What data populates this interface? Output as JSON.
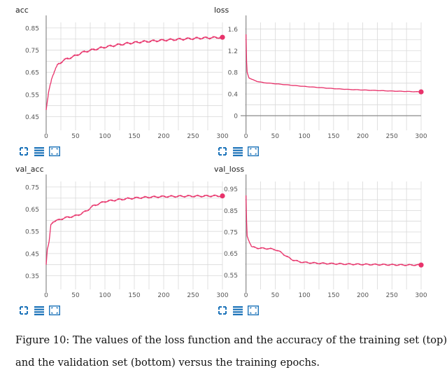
{
  "colors": {
    "series": "#e8336b",
    "grid": "#d9d9d9",
    "axis": "#8a8a8a",
    "ticklabel": "#555555",
    "icon": "#1c73b9"
  },
  "toolbar_icons": [
    "expand-icon",
    "list-icon",
    "fit-domain-icon"
  ],
  "caption": {
    "line1": "Figure 10: The values of the loss function and the accuracy of the training set (top)",
    "line2": "and the validation set (bottom) versus the training epochs."
  },
  "chart_data": [
    {
      "id": "acc",
      "type": "line",
      "title": "acc",
      "x_ticks": [
        "0",
        "50",
        "100",
        "150",
        "200",
        "250",
        "300"
      ],
      "y_ticks": [
        "0.45",
        "0.55",
        "0.65",
        "0.75",
        "0.85"
      ],
      "xlim": [
        0,
        300
      ],
      "ylim": [
        0.42,
        0.875
      ],
      "points": [
        [
          0,
          0.48
        ],
        [
          2,
          0.52
        ],
        [
          5,
          0.57
        ],
        [
          10,
          0.63
        ],
        [
          15,
          0.66
        ],
        [
          20,
          0.685
        ],
        [
          30,
          0.705
        ],
        [
          40,
          0.715
        ],
        [
          50,
          0.725
        ],
        [
          60,
          0.738
        ],
        [
          70,
          0.746
        ],
        [
          80,
          0.752
        ],
        [
          90,
          0.758
        ],
        [
          100,
          0.764
        ],
        [
          120,
          0.773
        ],
        [
          140,
          0.781
        ],
        [
          160,
          0.787
        ],
        [
          180,
          0.791
        ],
        [
          200,
          0.795
        ],
        [
          220,
          0.798
        ],
        [
          240,
          0.801
        ],
        [
          260,
          0.804
        ],
        [
          280,
          0.806
        ],
        [
          300,
          0.808
        ]
      ],
      "noise": 0.006
    },
    {
      "id": "loss",
      "type": "line",
      "title": "loss",
      "x_ticks": [
        "0",
        "50",
        "100",
        "150",
        "200",
        "250",
        "300"
      ],
      "y_ticks": [
        "0",
        "0.4",
        "0.8",
        "1.2",
        "1.6"
      ],
      "xlim": [
        -2,
        300
      ],
      "ylim": [
        -0.14,
        1.72
      ],
      "points": [
        [
          0,
          1.5
        ],
        [
          1,
          1.0
        ],
        [
          2,
          0.8
        ],
        [
          5,
          0.7
        ],
        [
          10,
          0.67
        ],
        [
          20,
          0.63
        ],
        [
          30,
          0.61
        ],
        [
          50,
          0.59
        ],
        [
          75,
          0.565
        ],
        [
          100,
          0.54
        ],
        [
          125,
          0.52
        ],
        [
          150,
          0.5
        ],
        [
          175,
          0.485
        ],
        [
          200,
          0.475
        ],
        [
          225,
          0.465
        ],
        [
          250,
          0.455
        ],
        [
          275,
          0.448
        ],
        [
          300,
          0.44
        ]
      ],
      "noise": 0.004
    },
    {
      "id": "val_acc",
      "type": "line",
      "title": "val_acc",
      "x_ticks": [
        "0",
        "50",
        "100",
        "150",
        "200",
        "250",
        "300"
      ],
      "y_ticks": [
        "0.35",
        "0.45",
        "0.55",
        "0.65",
        "0.75"
      ],
      "xlim": [
        0,
        300
      ],
      "ylim": [
        0.32,
        0.775
      ],
      "points": [
        [
          0,
          0.4
        ],
        [
          2,
          0.47
        ],
        [
          5,
          0.5
        ],
        [
          8,
          0.58
        ],
        [
          12,
          0.595
        ],
        [
          20,
          0.6
        ],
        [
          30,
          0.61
        ],
        [
          50,
          0.62
        ],
        [
          60,
          0.63
        ],
        [
          70,
          0.645
        ],
        [
          80,
          0.665
        ],
        [
          90,
          0.675
        ],
        [
          100,
          0.685
        ],
        [
          120,
          0.692
        ],
        [
          140,
          0.698
        ],
        [
          160,
          0.702
        ],
        [
          180,
          0.705
        ],
        [
          200,
          0.707
        ],
        [
          220,
          0.708
        ],
        [
          240,
          0.709
        ],
        [
          260,
          0.709
        ],
        [
          280,
          0.71
        ],
        [
          300,
          0.71
        ]
      ],
      "noise": 0.005
    },
    {
      "id": "val_loss",
      "type": "line",
      "title": "val_loss",
      "x_ticks": [
        "0",
        "50",
        "100",
        "150",
        "200",
        "250",
        "300"
      ],
      "y_ticks": [
        "0.55",
        "0.65",
        "0.75",
        "0.85",
        "0.95"
      ],
      "xlim": [
        -2,
        300
      ],
      "ylim": [
        0.515,
        0.985
      ],
      "points": [
        [
          0,
          0.92
        ],
        [
          1,
          0.8
        ],
        [
          2,
          0.73
        ],
        [
          5,
          0.71
        ],
        [
          10,
          0.68
        ],
        [
          20,
          0.675
        ],
        [
          40,
          0.672
        ],
        [
          50,
          0.668
        ],
        [
          60,
          0.655
        ],
        [
          70,
          0.635
        ],
        [
          80,
          0.62
        ],
        [
          90,
          0.612
        ],
        [
          100,
          0.608
        ],
        [
          125,
          0.604
        ],
        [
          150,
          0.602
        ],
        [
          175,
          0.6
        ],
        [
          200,
          0.599
        ],
        [
          225,
          0.598
        ],
        [
          250,
          0.597
        ],
        [
          275,
          0.596
        ],
        [
          300,
          0.596
        ]
      ],
      "noise": 0.004
    }
  ]
}
